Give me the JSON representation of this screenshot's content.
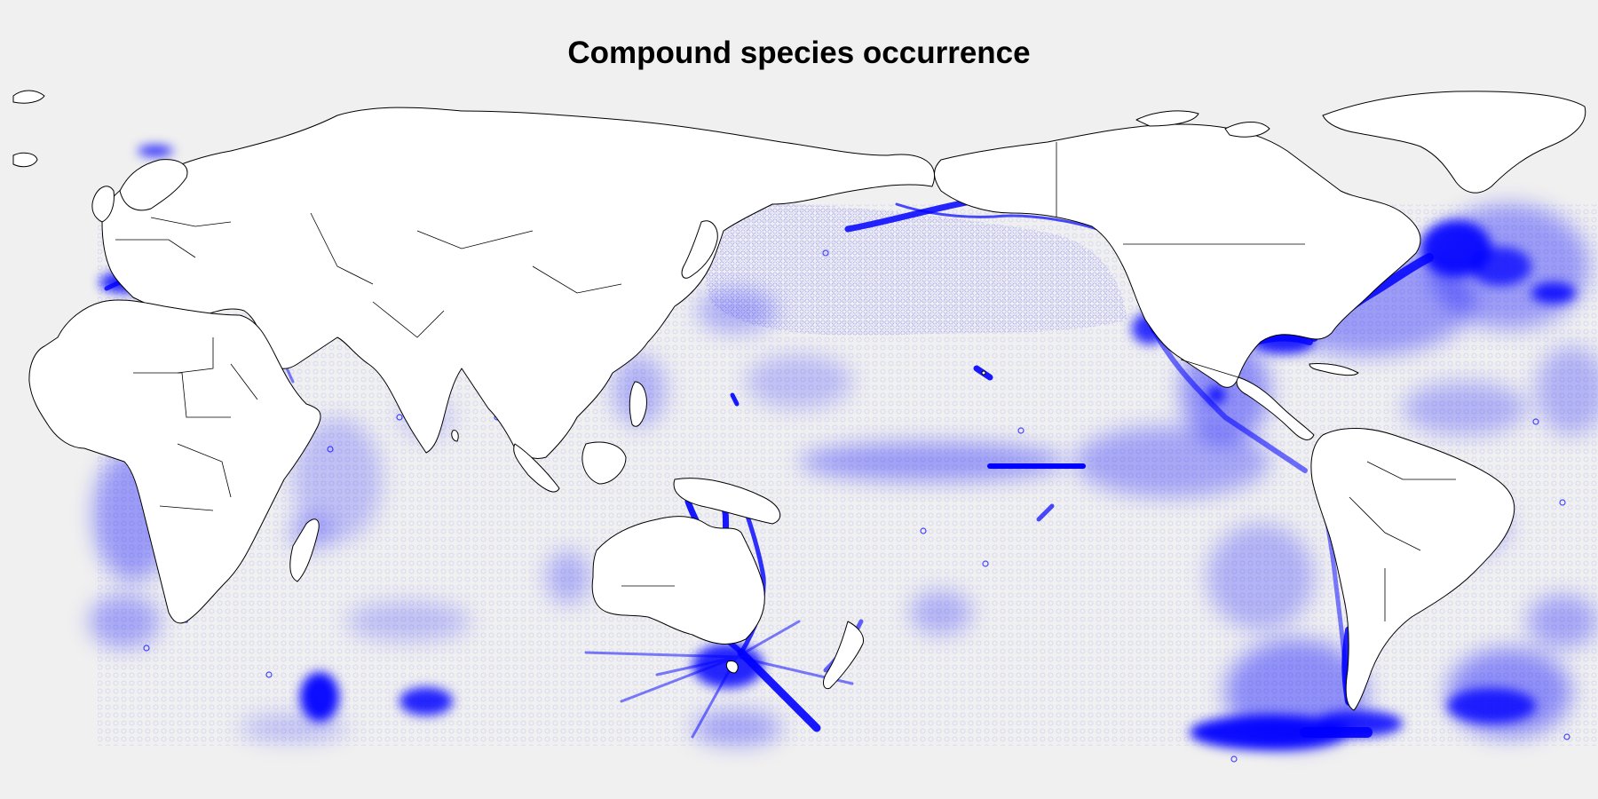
{
  "title": "Compound species occurrence",
  "colors": {
    "background": "#f0f0f0",
    "land_fill": "#ffffff",
    "coastline": "#000000",
    "occurrence": "#0000ff"
  },
  "map": {
    "projection": "equirectangular, Pacific-centred",
    "marker": "hollow circle"
  }
}
